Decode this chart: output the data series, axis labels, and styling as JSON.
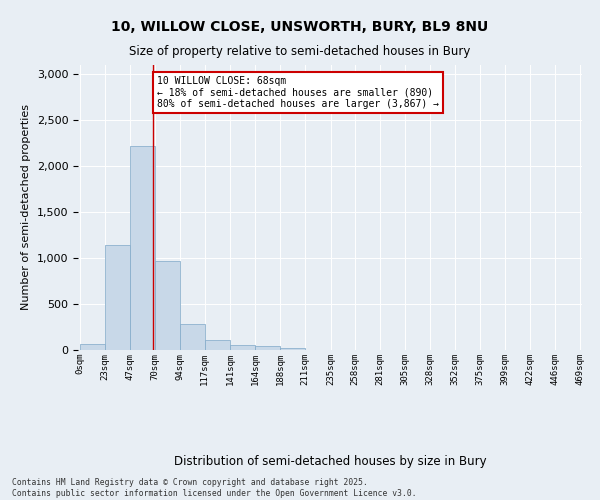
{
  "title_line1": "10, WILLOW CLOSE, UNSWORTH, BURY, BL9 8NU",
  "title_line2": "Size of property relative to semi-detached houses in Bury",
  "xlabel": "Distribution of semi-detached houses by size in Bury",
  "ylabel": "Number of semi-detached properties",
  "bar_edges": [
    0,
    23,
    47,
    70,
    94,
    117,
    141,
    164,
    188,
    211,
    235,
    258,
    281,
    305,
    328,
    352,
    375,
    399,
    422,
    446,
    469
  ],
  "bar_heights": [
    65,
    1140,
    2220,
    970,
    285,
    110,
    50,
    45,
    20,
    5,
    0,
    0,
    0,
    0,
    0,
    0,
    0,
    0,
    0,
    0
  ],
  "bar_color": "#c8d8e8",
  "bar_edgecolor": "#7fa8c8",
  "property_size": 68,
  "annotation_title": "10 WILLOW CLOSE: 68sqm",
  "annotation_line2": "← 18% of semi-detached houses are smaller (890)",
  "annotation_line3": "80% of semi-detached houses are larger (3,867) →",
  "vline_color": "#cc0000",
  "annotation_box_color": "#cc0000",
  "ylim": [
    0,
    3100
  ],
  "yticks": [
    0,
    500,
    1000,
    1500,
    2000,
    2500,
    3000
  ],
  "footer_line1": "Contains HM Land Registry data © Crown copyright and database right 2025.",
  "footer_line2": "Contains public sector information licensed under the Open Government Licence v3.0.",
  "bg_color": "#e8eef4",
  "plot_bg_color": "#e8eef4"
}
